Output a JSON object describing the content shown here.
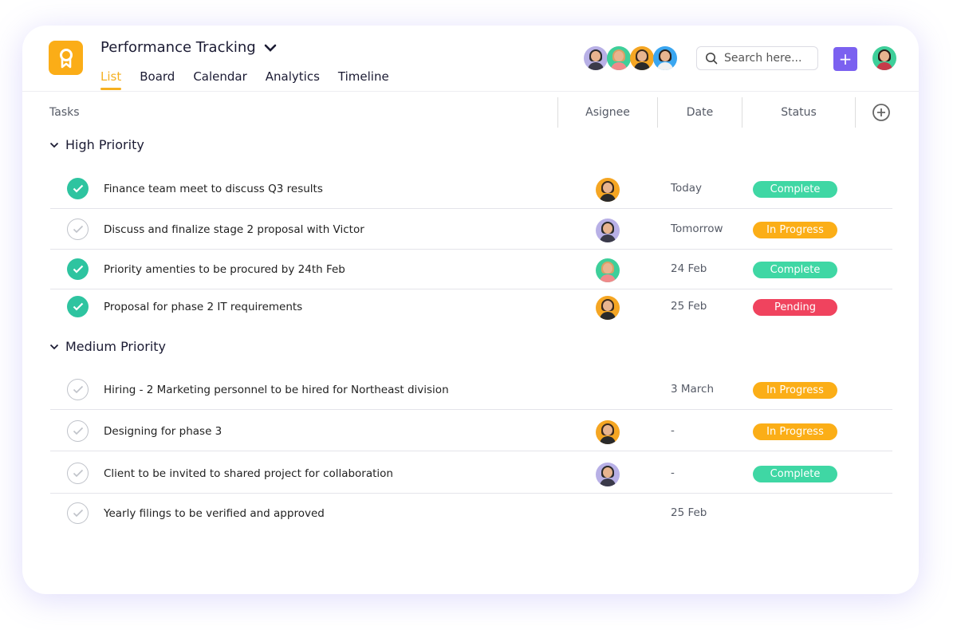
{
  "header": {
    "title": "Performance Tracking",
    "tabs": [
      {
        "label": "List",
        "active": true
      },
      {
        "label": "Board"
      },
      {
        "label": "Calendar"
      },
      {
        "label": "Analytics"
      },
      {
        "label": "Timeline"
      }
    ],
    "search_placeholder": "Search here...",
    "add_icon": "plus-icon",
    "accent": "#f5b021"
  },
  "team_avatars": [
    {
      "bg": "#b8b0e6",
      "hair": "#2a2a2a"
    },
    {
      "bg": "#3ecf9a",
      "hair": "#d9a066"
    },
    {
      "bg": "#f5a623",
      "hair": "#3b2a1e"
    },
    {
      "bg": "#3aa6f0",
      "hair": "#2a1e18"
    }
  ],
  "columns": {
    "tasks": "Tasks",
    "assignee": "Asignee",
    "date": "Date",
    "status": "Status",
    "add_column_icon": "plus-circle-icon"
  },
  "status_colors": {
    "Complete": "#3fd7a4",
    "In Progress": "#fbae17",
    "Pending": "#f0435e"
  },
  "sections": [
    {
      "title": "High Priority",
      "tasks": [
        {
          "name": "Finance team meet to discuss Q3 results",
          "done": true,
          "assignee": "woman-orange",
          "date": "Today",
          "status": "Complete"
        },
        {
          "name": "Discuss and finalize stage 2 proposal with Victor",
          "done": false,
          "assignee": "man-purple",
          "date": "Tomorrow",
          "status": "In Progress"
        },
        {
          "name": "Priority amenties to be procured by 24th Feb",
          "done": true,
          "assignee": "woman-green",
          "date": "24 Feb",
          "status": "Complete"
        },
        {
          "name": "Proposal for phase 2 IT requirements",
          "done": true,
          "assignee": "woman-orange",
          "date": "25 Feb",
          "status": "Pending"
        }
      ]
    },
    {
      "title": "Medium Priority",
      "tasks": [
        {
          "name": "Hiring - 2 Marketing personnel to be hired for Northeast division",
          "done": false,
          "assignee": null,
          "date": "3 March",
          "status": "In Progress"
        },
        {
          "name": "Designing for phase 3",
          "done": false,
          "assignee": "woman-orange",
          "date": "-",
          "status": "In Progress"
        },
        {
          "name": "Client to be invited to shared project for collaboration",
          "done": false,
          "assignee": "man-purple",
          "date": "-",
          "status": "Complete"
        },
        {
          "name": "Yearly filings to be verified and approved",
          "done": false,
          "assignee": null,
          "date": "25 Feb",
          "status": null
        }
      ]
    }
  ]
}
